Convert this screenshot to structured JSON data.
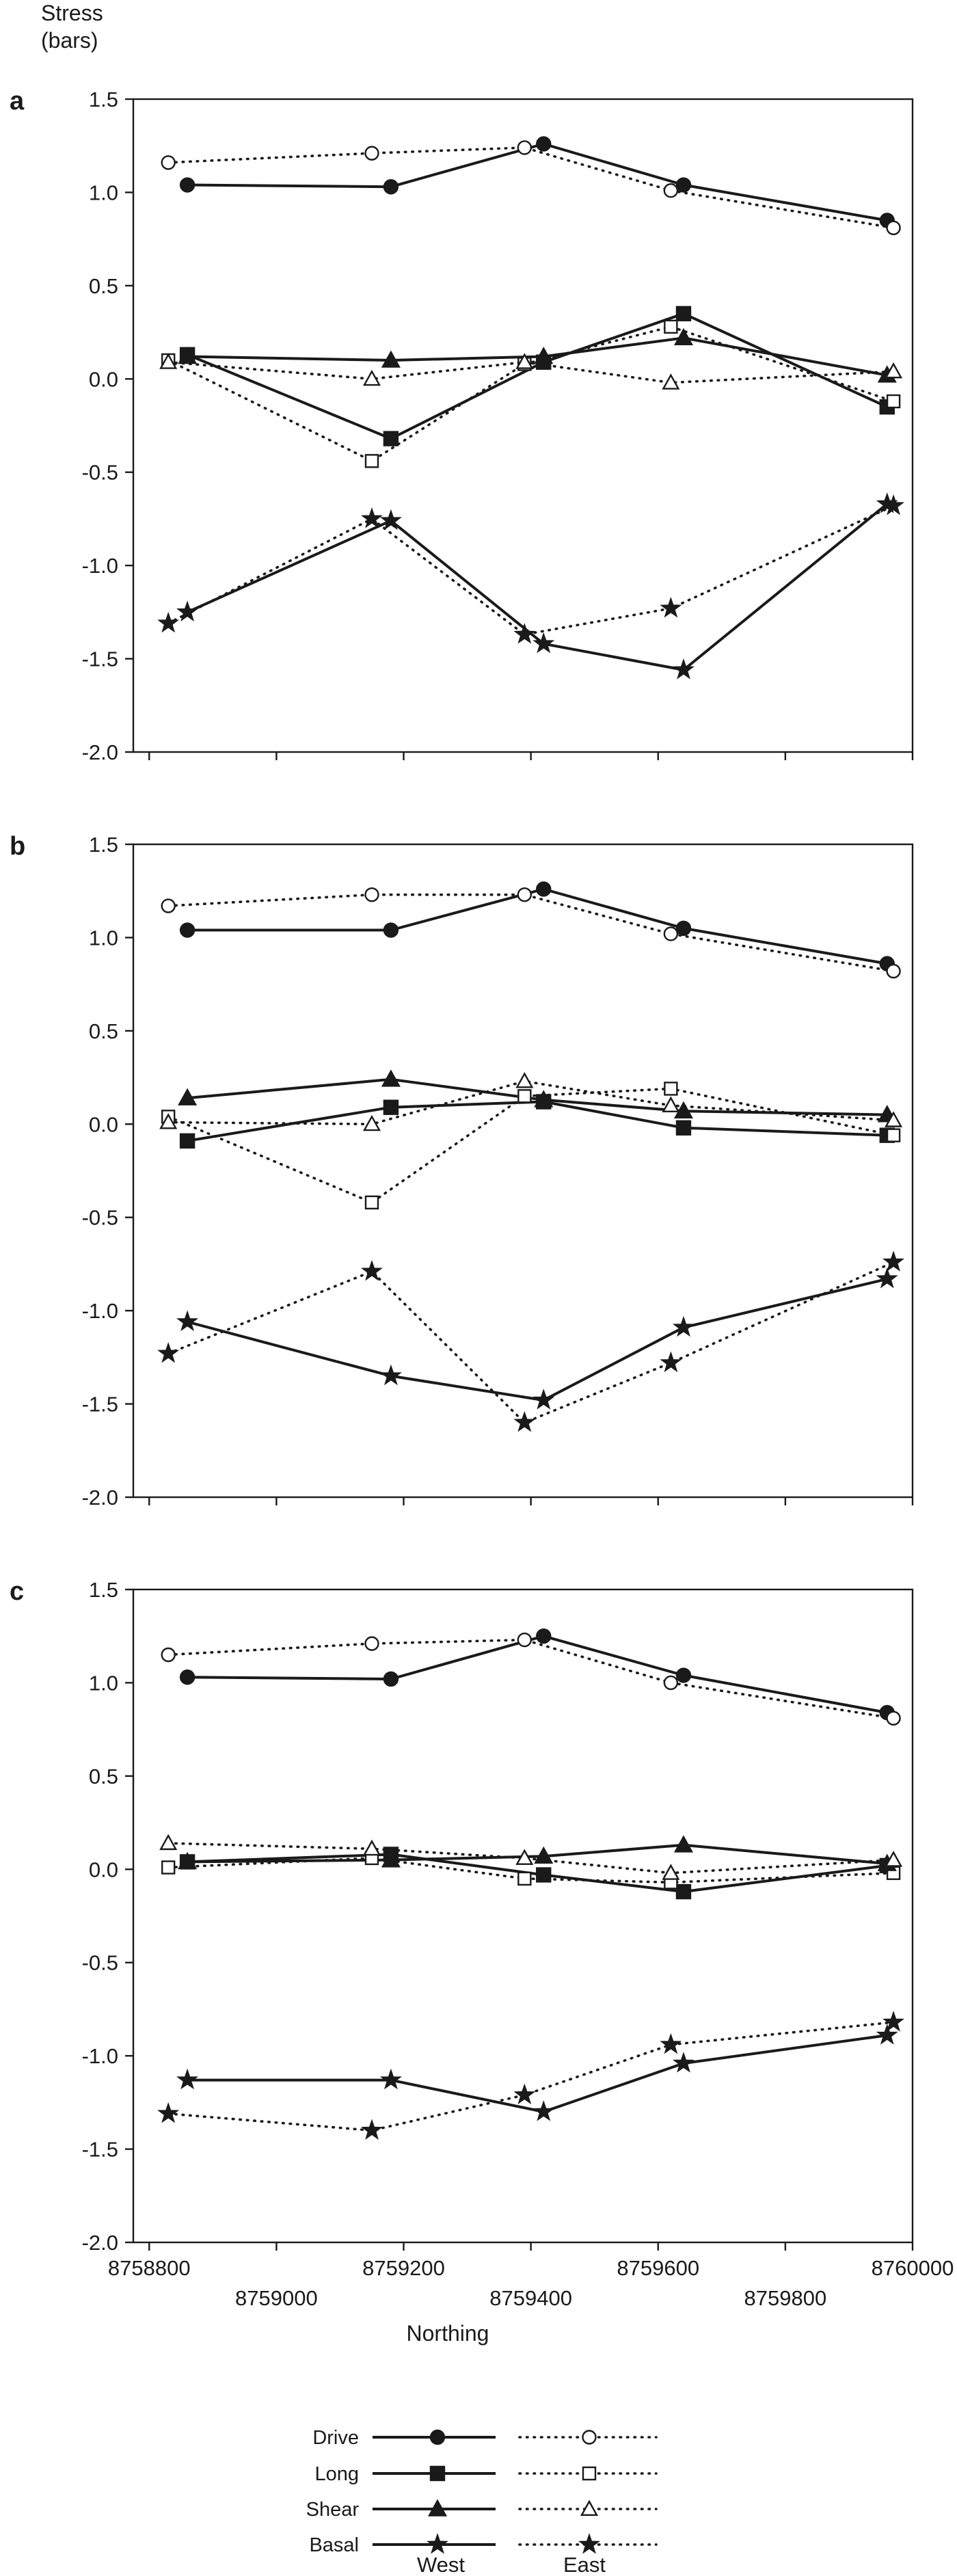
{
  "y_title_line1": "Stress",
  "y_title_line2": "(bars)",
  "xlabel": "Northing",
  "legend": {
    "group_west": "West",
    "group_east": "East",
    "entries": [
      {
        "label": "Drive",
        "marker": "circle"
      },
      {
        "label": "Long",
        "marker": "square"
      },
      {
        "label": "Shear",
        "marker": "triangle"
      },
      {
        "label": "Basal",
        "marker": "star"
      }
    ]
  },
  "colors": {
    "line": "#1a1a1a",
    "background": "#ffffff"
  },
  "chart_data": [
    {
      "type": "line",
      "panel": "a",
      "ylim": [
        -2.0,
        1.5
      ],
      "xlim": [
        8758775,
        8760000
      ],
      "yticks": [
        "1.5",
        "1.0",
        "0.5",
        "0.0",
        "-0.5",
        "-1.0",
        "-1.5",
        "-2.0"
      ],
      "series": [
        {
          "name": "Drive",
          "group": "West",
          "x": [
            8758860,
            8759180,
            8759420,
            8759640,
            8759960
          ],
          "y": [
            1.04,
            1.03,
            1.26,
            1.04,
            0.85
          ]
        },
        {
          "name": "Drive",
          "group": "East",
          "x": [
            8758830,
            8759150,
            8759390,
            8759620,
            8759970
          ],
          "y": [
            1.16,
            1.21,
            1.24,
            1.01,
            0.81
          ]
        },
        {
          "name": "Long",
          "group": "West",
          "x": [
            8758860,
            8759180,
            8759420,
            8759640,
            8759960
          ],
          "y": [
            0.13,
            -0.32,
            0.09,
            0.35,
            -0.15
          ]
        },
        {
          "name": "Long",
          "group": "East",
          "x": [
            8758830,
            8759150,
            8759390,
            8759620,
            8759970
          ],
          "y": [
            0.1,
            -0.44,
            0.08,
            0.28,
            -0.12
          ]
        },
        {
          "name": "Shear",
          "group": "West",
          "x": [
            8758860,
            8759180,
            8759420,
            8759640,
            8759960
          ],
          "y": [
            0.12,
            0.1,
            0.12,
            0.22,
            0.02
          ]
        },
        {
          "name": "Shear",
          "group": "East",
          "x": [
            8758830,
            8759150,
            8759390,
            8759620,
            8759970
          ],
          "y": [
            0.09,
            0.0,
            0.09,
            -0.02,
            0.04
          ]
        },
        {
          "name": "Basal",
          "group": "West",
          "x": [
            8758860,
            8759180,
            8759420,
            8759640,
            8759960
          ],
          "y": [
            -1.25,
            -0.76,
            -1.42,
            -1.56,
            -0.67
          ]
        },
        {
          "name": "Basal",
          "group": "East",
          "x": [
            8758830,
            8759150,
            8759390,
            8759620,
            8759970
          ],
          "y": [
            -1.31,
            -0.75,
            -1.37,
            -1.23,
            -0.68
          ]
        }
      ]
    },
    {
      "type": "line",
      "panel": "b",
      "ylim": [
        -2.0,
        1.5
      ],
      "xlim": [
        8758775,
        8760000
      ],
      "yticks": [
        "1.5",
        "1.0",
        "0.5",
        "0.0",
        "-0.5",
        "-1.0",
        "-1.5",
        "-2.0"
      ],
      "series": [
        {
          "name": "Drive",
          "group": "West",
          "x": [
            8758860,
            8759180,
            8759420,
            8759640,
            8759960
          ],
          "y": [
            1.04,
            1.04,
            1.26,
            1.05,
            0.86
          ]
        },
        {
          "name": "Drive",
          "group": "East",
          "x": [
            8758830,
            8759150,
            8759390,
            8759620,
            8759970
          ],
          "y": [
            1.17,
            1.23,
            1.23,
            1.02,
            0.82
          ]
        },
        {
          "name": "Long",
          "group": "West",
          "x": [
            8758860,
            8759180,
            8759420,
            8759640,
            8759960
          ],
          "y": [
            -0.09,
            0.09,
            0.12,
            -0.02,
            -0.06
          ]
        },
        {
          "name": "Long",
          "group": "East",
          "x": [
            8758830,
            8759150,
            8759390,
            8759620,
            8759970
          ],
          "y": [
            0.04,
            -0.42,
            0.15,
            0.19,
            -0.06
          ]
        },
        {
          "name": "Shear",
          "group": "West",
          "x": [
            8758860,
            8759180,
            8759420,
            8759640,
            8759960
          ],
          "y": [
            0.14,
            0.24,
            0.13,
            0.07,
            0.05
          ]
        },
        {
          "name": "Shear",
          "group": "East",
          "x": [
            8758830,
            8759150,
            8759390,
            8759620,
            8759970
          ],
          "y": [
            0.01,
            0.0,
            0.23,
            0.1,
            0.02
          ]
        },
        {
          "name": "Basal",
          "group": "West",
          "x": [
            8758860,
            8759180,
            8759420,
            8759640,
            8759960
          ],
          "y": [
            -1.06,
            -1.35,
            -1.48,
            -1.09,
            -0.83
          ]
        },
        {
          "name": "Basal",
          "group": "East",
          "x": [
            8758830,
            8759150,
            8759390,
            8759620,
            8759970
          ],
          "y": [
            -1.23,
            -0.79,
            -1.6,
            -1.28,
            -0.74
          ]
        }
      ]
    },
    {
      "type": "line",
      "panel": "c",
      "ylim": [
        -2.0,
        1.5
      ],
      "xlim": [
        8758775,
        8760000
      ],
      "xticks_lower": [
        "8758800",
        "8759200",
        "8759600",
        "8760000"
      ],
      "xticks_upper": [
        "8759000",
        "8759400",
        "8759800"
      ],
      "yticks": [
        "1.5",
        "1.0",
        "0.5",
        "0.0",
        "-0.5",
        "-1.0",
        "-1.5",
        "-2.0"
      ],
      "series": [
        {
          "name": "Drive",
          "group": "West",
          "x": [
            8758860,
            8759180,
            8759420,
            8759640,
            8759960
          ],
          "y": [
            1.03,
            1.02,
            1.25,
            1.04,
            0.84
          ]
        },
        {
          "name": "Drive",
          "group": "East",
          "x": [
            8758830,
            8759150,
            8759390,
            8759620,
            8759970
          ],
          "y": [
            1.15,
            1.21,
            1.23,
            1.0,
            0.81
          ]
        },
        {
          "name": "Long",
          "group": "West",
          "x": [
            8758860,
            8759180,
            8759420,
            8759640,
            8759960
          ],
          "y": [
            0.04,
            0.08,
            -0.03,
            -0.12,
            0.02
          ]
        },
        {
          "name": "Long",
          "group": "East",
          "x": [
            8758830,
            8759150,
            8759390,
            8759620,
            8759970
          ],
          "y": [
            0.01,
            0.06,
            -0.05,
            -0.07,
            -0.02
          ]
        },
        {
          "name": "Shear",
          "group": "West",
          "x": [
            8758860,
            8759180,
            8759420,
            8759640,
            8759960
          ],
          "y": [
            0.04,
            0.05,
            0.07,
            0.13,
            0.03
          ]
        },
        {
          "name": "Shear",
          "group": "East",
          "x": [
            8758830,
            8759150,
            8759390,
            8759620,
            8759970
          ],
          "y": [
            0.14,
            0.11,
            0.06,
            -0.02,
            0.05
          ]
        },
        {
          "name": "Basal",
          "group": "West",
          "x": [
            8758860,
            8759180,
            8759420,
            8759640,
            8759960
          ],
          "y": [
            -1.13,
            -1.13,
            -1.3,
            -1.04,
            -0.89
          ]
        },
        {
          "name": "Basal",
          "group": "East",
          "x": [
            8758830,
            8759150,
            8759390,
            8759620,
            8759970
          ],
          "y": [
            -1.31,
            -1.4,
            -1.21,
            -0.94,
            -0.82
          ]
        }
      ]
    }
  ]
}
